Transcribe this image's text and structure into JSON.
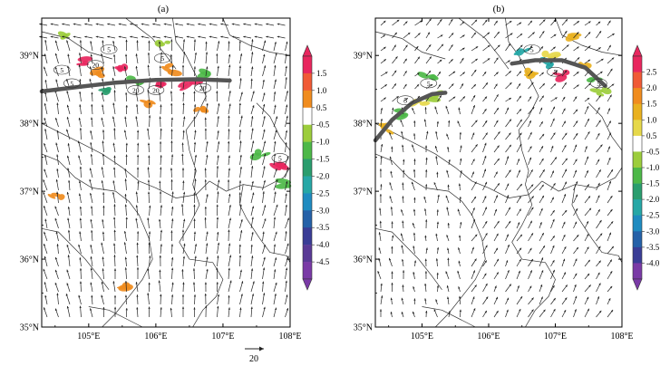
{
  "panels": [
    {
      "label": "(a)",
      "lat_ticks": [
        "39°N",
        "38°N",
        "37°N",
        "36°N",
        "35°N"
      ],
      "lon_ticks": [
        "105°E",
        "106°E",
        "107°E",
        "108°E"
      ],
      "extent": {
        "lon": [
          104.3,
          108.0
        ],
        "lat": [
          35.0,
          39.55
        ]
      },
      "front_path": [
        [
          104.3,
          38.47
        ],
        [
          104.8,
          38.53
        ],
        [
          105.4,
          38.6
        ],
        [
          106.0,
          38.64
        ],
        [
          106.6,
          38.65
        ],
        [
          107.1,
          38.63
        ]
      ],
      "contour_labels": [
        "5",
        "20",
        "5",
        "20",
        "20",
        "20",
        "5",
        "5",
        "5"
      ],
      "colorbar": {
        "levels": [
          "1.5",
          "1.0",
          "0.5",
          "-0.5",
          "-1.0",
          "-1.5",
          "-2.0",
          "-2.5",
          "-3.0",
          "-3.5",
          "-4.0",
          "-4.5"
        ],
        "colors": [
          "#e8265e",
          "#f05a36",
          "#f08c1e",
          "#ffffff",
          "#9ccd3c",
          "#4db848",
          "#2a9d6e",
          "#26a7a6",
          "#1f8bc0",
          "#2561a8",
          "#3a3d96",
          "#5a3a96",
          "#7a3aa6"
        ]
      }
    },
    {
      "label": "(b)",
      "lat_ticks": [
        "39°N",
        "38°N",
        "37°N",
        "36°N",
        "35°N"
      ],
      "lon_ticks": [
        "105°E",
        "106°E",
        "107°E",
        "108°E"
      ],
      "extent": {
        "lon": [
          104.3,
          108.0
        ],
        "lat": [
          35.0,
          39.55
        ]
      },
      "front_path": [
        [
          104.3,
          37.75
        ],
        [
          104.55,
          38.05
        ],
        [
          104.85,
          38.3
        ],
        [
          105.15,
          38.43
        ],
        [
          105.35,
          38.45
        ]
      ],
      "front_path2": [
        [
          106.35,
          38.88
        ],
        [
          106.7,
          38.93
        ],
        [
          107.1,
          38.93
        ],
        [
          107.45,
          38.82
        ],
        [
          107.75,
          38.55
        ]
      ],
      "contour_labels": [
        "5",
        "5",
        "5",
        "5",
        "5"
      ],
      "colorbar": {
        "levels": [
          "2.5",
          "2.0",
          "1.5",
          "1.0",
          "0.5",
          "-0.5",
          "-1.0",
          "-1.5",
          "-2.0",
          "-2.5",
          "-3.0",
          "-3.5",
          "-4.0"
        ],
        "colors": [
          "#e8265e",
          "#f05a36",
          "#f08c1e",
          "#e9b11f",
          "#e6d84a",
          "#ffffff",
          "#9ccd3c",
          "#4db848",
          "#2a9d6e",
          "#26a7a6",
          "#1f8bc0",
          "#2561a8",
          "#3a3d96",
          "#7a3aa6"
        ]
      }
    }
  ],
  "reference_vector": {
    "label": "20"
  },
  "colors": {
    "front": "#555555",
    "arrow": "#222222",
    "border": "#333333",
    "contour": "#333333"
  }
}
